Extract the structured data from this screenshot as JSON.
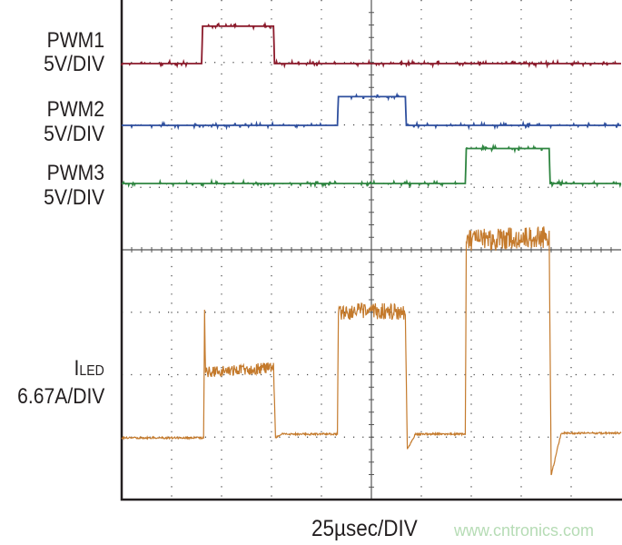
{
  "chart_data": {
    "type": "line",
    "title": "",
    "xlabel": "25µsec/DIV",
    "x_unit": "µs",
    "xlim": [
      0,
      250
    ],
    "grid": true,
    "grid_divisions": {
      "x": 10,
      "y": 8
    },
    "series": [
      {
        "name": "PWM1",
        "scale_label": "5V/DIV",
        "unit": "V",
        "color": "#8b1a2b",
        "x": [
          0,
          40,
          40.5,
          76,
          76.5,
          250
        ],
        "y": [
          0,
          0,
          3,
          3,
          0,
          0
        ]
      },
      {
        "name": "PWM2",
        "scale_label": "5V/DIV",
        "unit": "V",
        "color": "#2e4f9e",
        "x": [
          0,
          108,
          108.5,
          142,
          142.5,
          250
        ],
        "y": [
          0,
          0,
          2.3,
          2.3,
          0,
          0
        ]
      },
      {
        "name": "PWM3",
        "scale_label": "5V/DIV",
        "unit": "V",
        "color": "#2e8540",
        "x": [
          0,
          172,
          172.5,
          214,
          214.5,
          250
        ],
        "y": [
          0,
          0,
          2.8,
          2.8,
          0,
          0
        ]
      },
      {
        "name": "ILED",
        "name_main": "I",
        "name_sub": "LED",
        "scale_label": "6.67A/DIV",
        "unit": "A",
        "color": "#c47a2c",
        "x": [
          0,
          41,
          41.5,
          42,
          76,
          77,
          80,
          108,
          108.5,
          142,
          143,
          147,
          172,
          172.5,
          214,
          215,
          220,
          250
        ],
        "y": [
          0,
          0,
          13,
          7,
          7.5,
          0,
          0.4,
          0.4,
          13.5,
          13.5,
          -1.2,
          0.4,
          0.4,
          21,
          21.5,
          -4,
          0.5,
          0.5
        ]
      }
    ]
  },
  "watermark": "www.cntronics.com"
}
